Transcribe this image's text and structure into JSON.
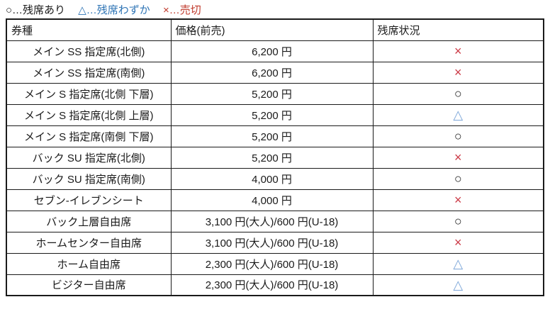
{
  "legend": {
    "items": [
      {
        "label": "○…残席あり",
        "color": "#1a1a1a"
      },
      {
        "label": "△…残席わずか",
        "color": "#2e74b5"
      },
      {
        "label": "×…売切",
        "color": "#c0392b"
      }
    ]
  },
  "colors": {
    "available": "#1a1a1a",
    "few_left": "#7da7d9",
    "sold_out": "#cc3b47",
    "border": "#1a1a1a"
  },
  "table": {
    "headers": [
      "券種",
      "価格(前売)",
      "残席状況"
    ],
    "rows": [
      {
        "type": "メイン SS 指定席(北側)",
        "price": "6,200 円",
        "status": "×",
        "status_color": "#cc3b47"
      },
      {
        "type": "メイン SS 指定席(南側)",
        "price": "6,200 円",
        "status": "×",
        "status_color": "#cc3b47"
      },
      {
        "type": "メイン S 指定席(北側 下層)",
        "price": "5,200 円",
        "status": "○",
        "status_color": "#1a1a1a"
      },
      {
        "type": "メイン S 指定席(北側 上層)",
        "price": "5,200 円",
        "status": "△",
        "status_color": "#7da7d9"
      },
      {
        "type": "メイン S 指定席(南側 下層)",
        "price": "5,200 円",
        "status": "○",
        "status_color": "#1a1a1a"
      },
      {
        "type": "バック SU 指定席(北側)",
        "price": "5,200 円",
        "status": "×",
        "status_color": "#cc3b47"
      },
      {
        "type": "バック SU 指定席(南側)",
        "price": "4,000 円",
        "status": "○",
        "status_color": "#1a1a1a"
      },
      {
        "type": "セブン-イレブンシート",
        "price": "4,000 円",
        "status": "×",
        "status_color": "#cc3b47"
      },
      {
        "type": "バック上層自由席",
        "price": "3,100 円(大人)/600 円(U-18)",
        "status": "○",
        "status_color": "#1a1a1a"
      },
      {
        "type": "ホームセンター自由席",
        "price": "3,100 円(大人)/600 円(U-18)",
        "status": "×",
        "status_color": "#cc3b47"
      },
      {
        "type": "ホーム自由席",
        "price": "2,300 円(大人)/600 円(U-18)",
        "status": "△",
        "status_color": "#7da7d9"
      },
      {
        "type": "ビジター自由席",
        "price": "2,300 円(大人)/600 円(U-18)",
        "status": "△",
        "status_color": "#7da7d9"
      }
    ]
  }
}
